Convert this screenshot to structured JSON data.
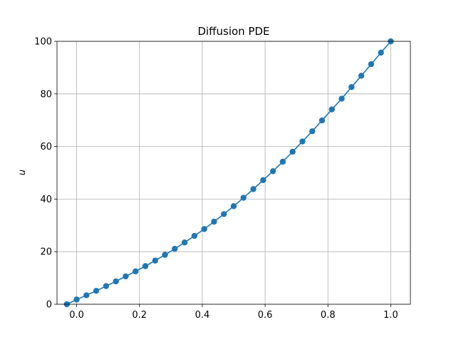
{
  "chart_data": {
    "type": "line",
    "title": "Diffusion PDE",
    "xlabel": "",
    "ylabel": "u",
    "xlim": [
      -0.0625,
      1.0625
    ],
    "ylim": [
      0,
      100
    ],
    "xticks": [
      0.0,
      0.2,
      0.4,
      0.6,
      0.8,
      1.0
    ],
    "xtick_labels": [
      "0.0",
      "0.2",
      "0.4",
      "0.6",
      "0.8",
      "1.0"
    ],
    "yticks": [
      0,
      20,
      40,
      60,
      80,
      100
    ],
    "ytick_labels": [
      "0",
      "20",
      "40",
      "60",
      "80",
      "100"
    ],
    "grid": true,
    "series_color": "#1f77b4",
    "markers": true,
    "x": [
      -0.0312,
      0.0,
      0.0312,
      0.0625,
      0.0938,
      0.125,
      0.1562,
      0.1875,
      0.2188,
      0.25,
      0.2812,
      0.3125,
      0.3438,
      0.375,
      0.4062,
      0.4375,
      0.4688,
      0.5,
      0.5312,
      0.5625,
      0.5938,
      0.625,
      0.6562,
      0.6875,
      0.7188,
      0.75,
      0.7812,
      0.8125,
      0.8438,
      0.875,
      0.9062,
      0.9375,
      0.9688,
      1.0
    ],
    "y": [
      0.0,
      1.8,
      3.4,
      5.1,
      6.9,
      8.7,
      10.6,
      12.5,
      14.5,
      16.6,
      18.8,
      21.1,
      23.5,
      26.0,
      28.6,
      31.4,
      34.3,
      37.3,
      40.5,
      43.8,
      47.2,
      50.6,
      54.2,
      58.0,
      61.9,
      65.8,
      69.9,
      74.1,
      78.2,
      82.6,
      86.9,
      91.3,
      95.7,
      100.0
    ]
  }
}
